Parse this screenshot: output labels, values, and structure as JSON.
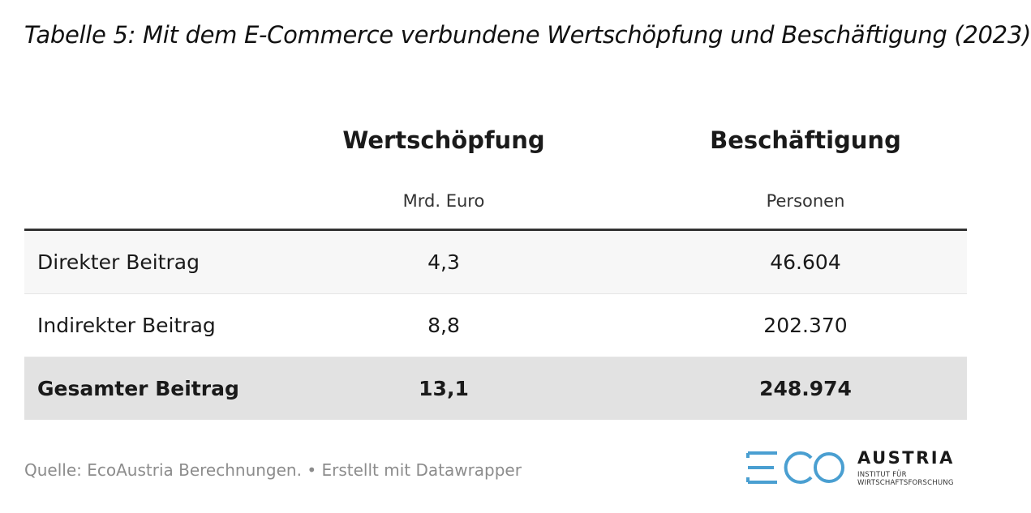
{
  "title": "Tabelle 5: Mit dem E-Commerce verbundene Wertschöpfung und Beschäftigung (2023)",
  "chart_data": {
    "type": "table",
    "columns": [
      {
        "header": "Wertschöpfung",
        "unit": "Mrd. Euro"
      },
      {
        "header": "Beschäftigung",
        "unit": "Personen"
      }
    ],
    "rows": [
      {
        "label": "Direkter Beitrag",
        "values": [
          "4,3",
          "46.604"
        ]
      },
      {
        "label": "Indirekter Beitrag",
        "values": [
          "8,8",
          "202.370"
        ]
      },
      {
        "label": "Gesamter Beitrag",
        "values": [
          "13,1",
          "248.974"
        ]
      }
    ]
  },
  "footer": "Quelle: EcoAustria Berechnungen. • Erstellt mit Datawrapper",
  "logo": {
    "mark": "ECO",
    "name": "AUSTRIA",
    "subtitle_line1": "INSTITUT FÜR",
    "subtitle_line2": "WIRTSCHAFTSFORSCHUNG",
    "color": "#4a9fd1"
  }
}
